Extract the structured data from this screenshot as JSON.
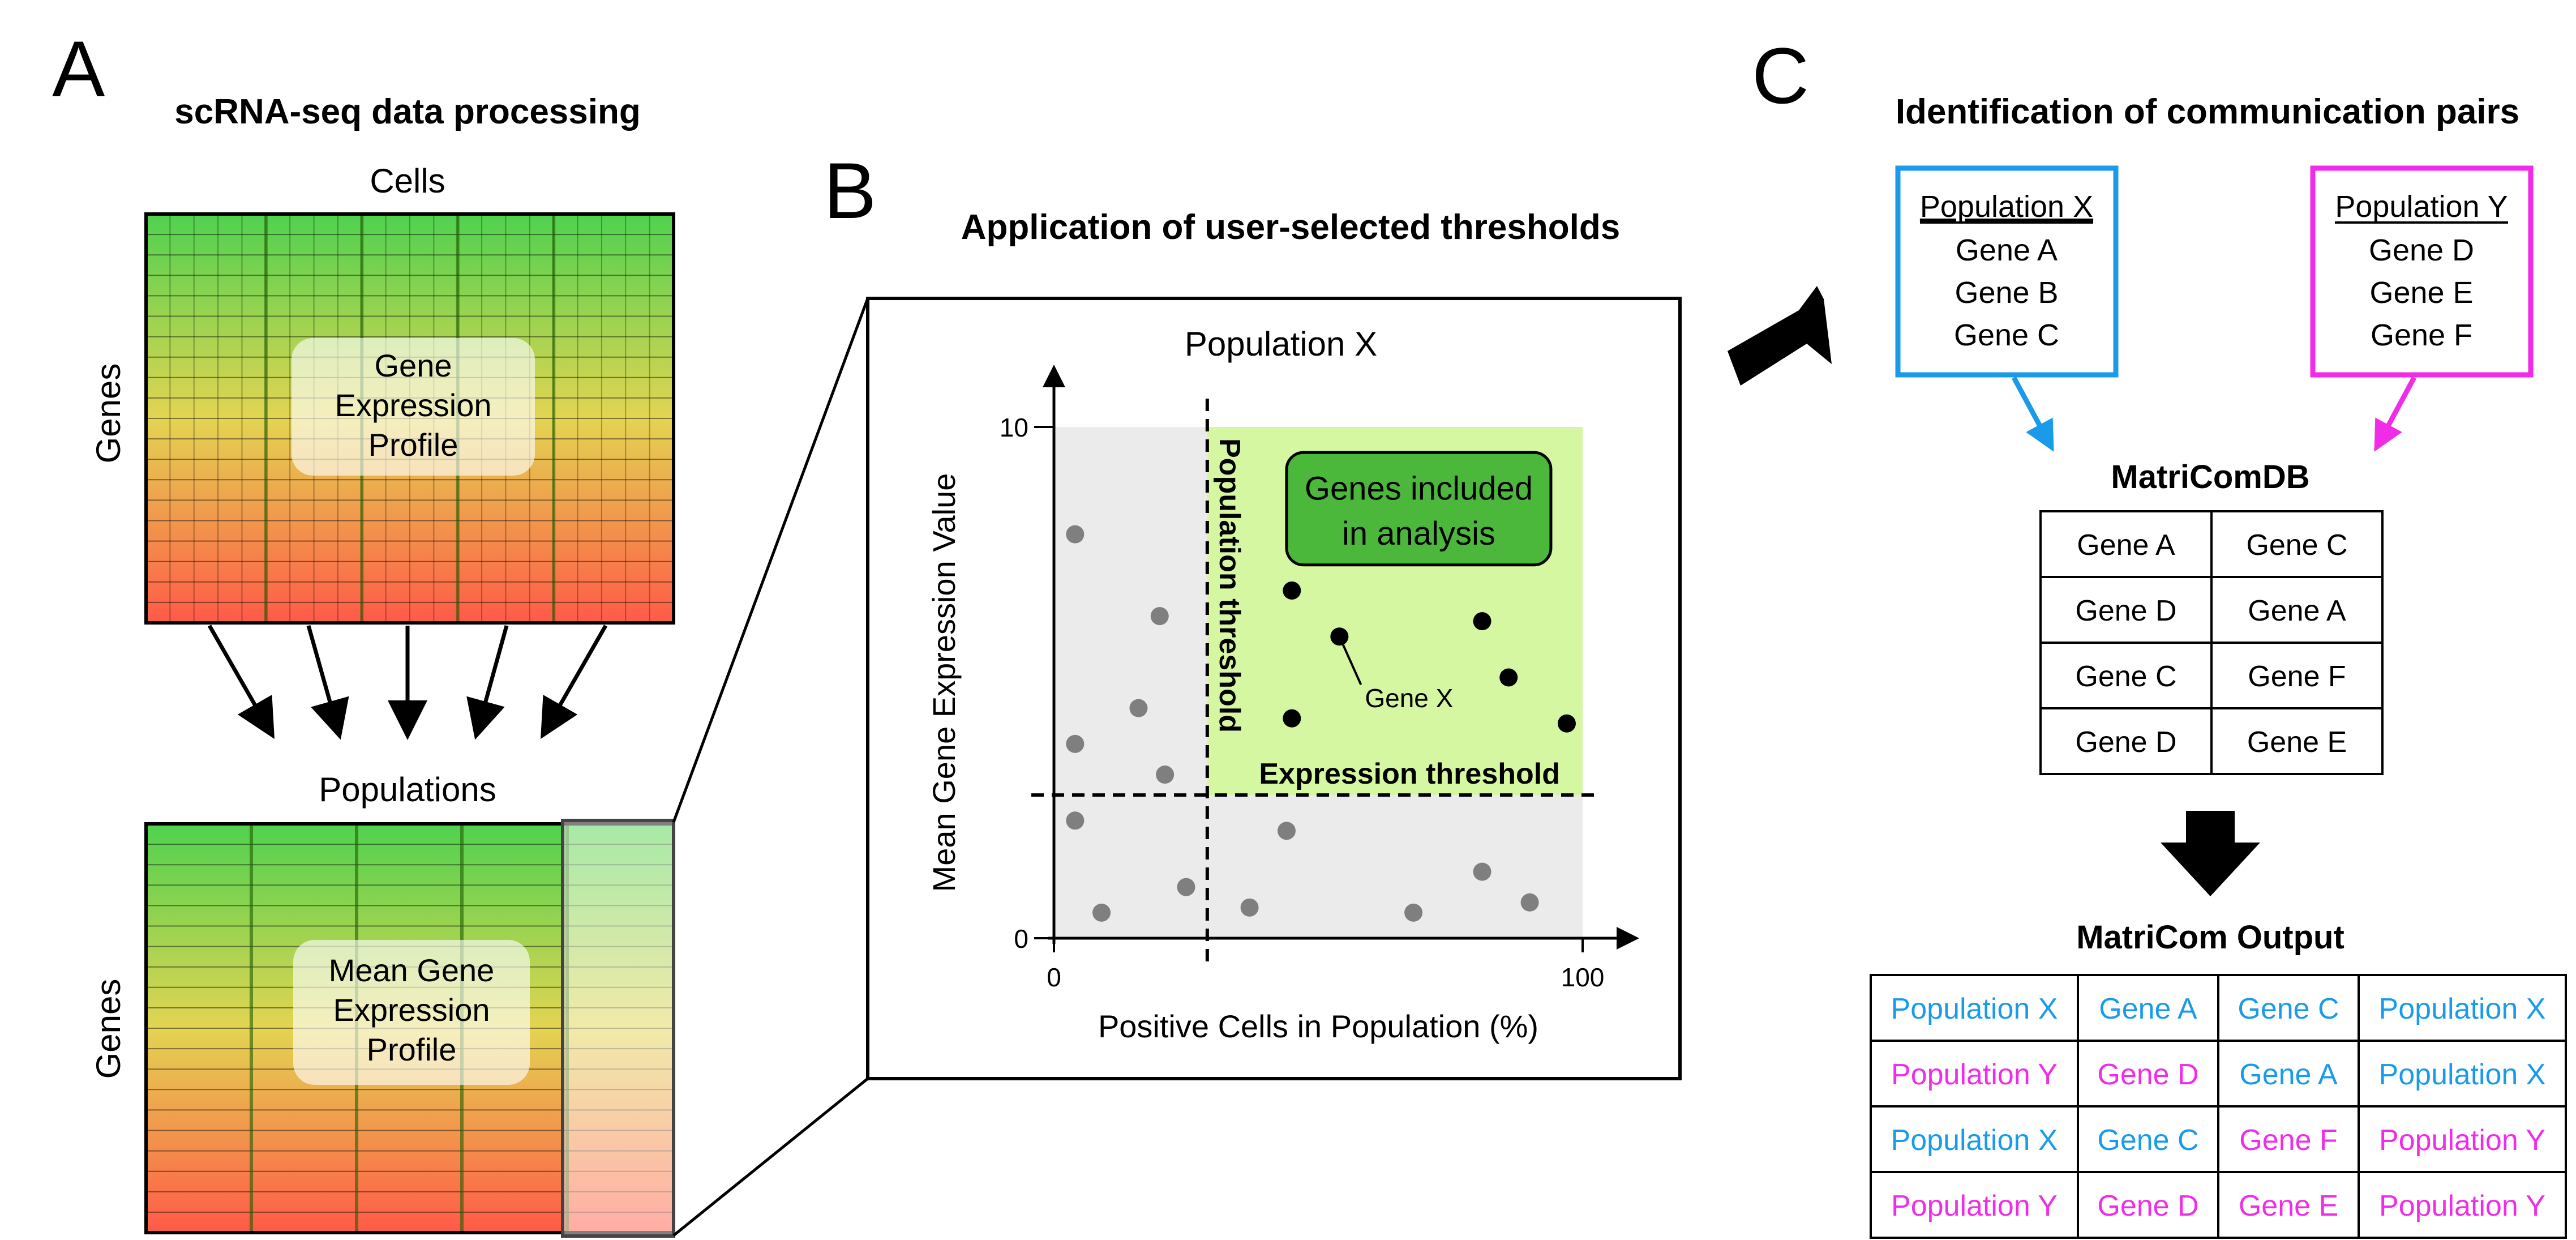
{
  "panel_a": {
    "letter": "A",
    "title": "scRNA-seq data processing",
    "cells_label": "Cells",
    "genes_label_top": "Genes",
    "profile_lines": [
      "Gene",
      "Expression",
      "Profile"
    ],
    "populations_label": "Populations",
    "genes_label_bottom": "Genes",
    "mean_profile_lines": [
      "Mean Gene",
      "Expression",
      "Profile"
    ],
    "colors": {
      "top": "#4fd24f",
      "middle": "#e3d452",
      "bottom": "#ff5a47"
    }
  },
  "panel_b": {
    "letter": "B",
    "title": "Application of user-selected thresholds",
    "chart_title": "Population X",
    "chart_data": {
      "type": "scatter",
      "title": "Population X",
      "xlabel": "Positive Cells in Population (%)",
      "ylabel": "Mean Gene Expression Value",
      "xlim": [
        0,
        100
      ],
      "ylim": [
        0,
        10
      ],
      "x_ticks": [
        "0",
        "100"
      ],
      "y_ticks": [
        "0",
        "10"
      ],
      "thresholds": {
        "population": 29,
        "expression": 2.8
      },
      "series": [
        {
          "points": [
            {
              "x": 4,
              "y": 7.9
            },
            {
              "x": 20,
              "y": 6.3
            },
            {
              "x": 16,
              "y": 4.5
            },
            {
              "x": 4,
              "y": 3.8
            },
            {
              "x": 21,
              "y": 3.2
            },
            {
              "x": 4,
              "y": 2.3
            },
            {
              "x": 9,
              "y": 0.5
            },
            {
              "x": 25,
              "y": 1.0
            },
            {
              "x": 37,
              "y": 0.6
            },
            {
              "x": 44,
              "y": 2.1
            },
            {
              "x": 68,
              "y": 0.5
            },
            {
              "x": 81,
              "y": 1.3
            },
            {
              "x": 90,
              "y": 0.7
            }
          ]
        },
        {
          "points": [
            {
              "x": 45,
              "y": 6.8
            },
            {
              "x": 54,
              "y": 5.9
            },
            {
              "x": 81,
              "y": 6.2
            },
            {
              "x": 86,
              "y": 5.1
            },
            {
              "x": 45,
              "y": 4.3
            },
            {
              "x": 97,
              "y": 4.2
            }
          ]
        }
      ],
      "annotations": [
        "Gene X",
        "Population threshold",
        "Expression threshold"
      ]
    },
    "included_label_lines": [
      "Genes included",
      "in analysis"
    ],
    "gene_x_label": "Gene X",
    "population_threshold_label": "Population threshold",
    "expression_threshold_label": "Expression threshold",
    "colors": {
      "included": "#d6f7a1",
      "excluded": "#ebebeb",
      "included_box": "#4cb83b",
      "dot_included": "#000000",
      "dot_excluded": "#7f7f7f"
    }
  },
  "panel_c": {
    "letter": "C",
    "title": "Identification of communication pairs",
    "population_x": {
      "title": "Population X",
      "genes": [
        "Gene A",
        "Gene B",
        "Gene C"
      ],
      "color": "#1a9bea"
    },
    "population_y": {
      "title": "Population Y",
      "genes": [
        "Gene D",
        "Gene E",
        "Gene F"
      ],
      "color": "#f02ce8"
    },
    "db_title": "MatriComDB",
    "db_rows": [
      [
        "Gene A",
        "Gene C"
      ],
      [
        "Gene D",
        "Gene A"
      ],
      [
        "Gene C",
        "Gene F"
      ],
      [
        "Gene D",
        "Gene E"
      ]
    ],
    "output_title": "MatriCom Output",
    "output_rows": [
      [
        {
          "text": "Population X",
          "color": "#1a9bea"
        },
        {
          "text": "Gene A",
          "color": "#1a9bea"
        },
        {
          "text": "Gene C",
          "color": "#1a9bea"
        },
        {
          "text": "Population X",
          "color": "#1a9bea"
        }
      ],
      [
        {
          "text": "Population Y",
          "color": "#f02ce8"
        },
        {
          "text": "Gene D",
          "color": "#f02ce8"
        },
        {
          "text": "Gene A",
          "color": "#1a9bea"
        },
        {
          "text": "Population X",
          "color": "#1a9bea"
        }
      ],
      [
        {
          "text": "Population X",
          "color": "#1a9bea"
        },
        {
          "text": "Gene C",
          "color": "#1a9bea"
        },
        {
          "text": "Gene F",
          "color": "#f02ce8"
        },
        {
          "text": "Population Y",
          "color": "#f02ce8"
        }
      ],
      [
        {
          "text": "Population Y",
          "color": "#f02ce8"
        },
        {
          "text": "Gene D",
          "color": "#f02ce8"
        },
        {
          "text": "Gene E",
          "color": "#f02ce8"
        },
        {
          "text": "Population Y",
          "color": "#f02ce8"
        }
      ]
    ]
  }
}
